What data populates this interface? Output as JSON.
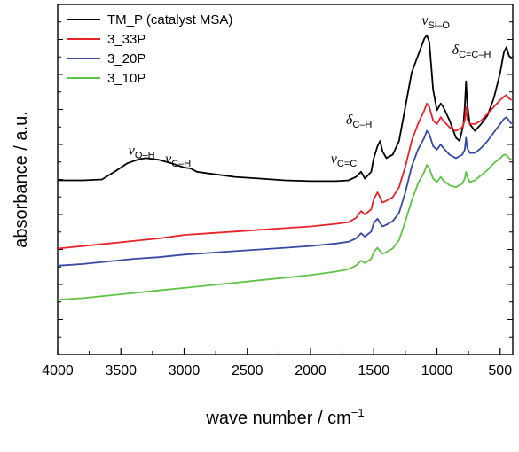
{
  "chart_data": {
    "type": "line",
    "xlabel": "wave number / cm",
    "xlabel_sup": "−1",
    "ylabel": "absorbance / a.u.",
    "xlim": [
      4000,
      400
    ],
    "ylim": [
      -0.05,
      2.0
    ],
    "x_ticks": [
      4000,
      3500,
      3000,
      2500,
      2000,
      1500,
      1000,
      500
    ],
    "y_ticks_labeled": false,
    "legend_position": "top-left",
    "series": [
      {
        "name": "TM_P (catalyst MSA)",
        "color": "#000000",
        "points": [
          [
            4000,
            0.97
          ],
          [
            3800,
            0.97
          ],
          [
            3650,
            0.975
          ],
          [
            3550,
            1.02
          ],
          [
            3450,
            1.07
          ],
          [
            3350,
            1.095
          ],
          [
            3300,
            1.1
          ],
          [
            3200,
            1.09
          ],
          [
            3100,
            1.07
          ],
          [
            3000,
            1.045
          ],
          [
            2950,
            1.04
          ],
          [
            2900,
            1.02
          ],
          [
            2800,
            1.01
          ],
          [
            2600,
            0.99
          ],
          [
            2400,
            0.98
          ],
          [
            2200,
            0.97
          ],
          [
            2000,
            0.965
          ],
          [
            1800,
            0.965
          ],
          [
            1700,
            0.97
          ],
          [
            1640,
            0.99
          ],
          [
            1600,
            1.02
          ],
          [
            1570,
            0.98
          ],
          [
            1520,
            1.02
          ],
          [
            1500,
            1.1
          ],
          [
            1470,
            1.17
          ],
          [
            1450,
            1.2
          ],
          [
            1430,
            1.14
          ],
          [
            1400,
            1.1
          ],
          [
            1350,
            1.12
          ],
          [
            1300,
            1.2
          ],
          [
            1250,
            1.4
          ],
          [
            1200,
            1.6
          ],
          [
            1150,
            1.7
          ],
          [
            1100,
            1.8
          ],
          [
            1080,
            1.82
          ],
          [
            1060,
            1.78
          ],
          [
            1030,
            1.5
          ],
          [
            1000,
            1.38
          ],
          [
            970,
            1.42
          ],
          [
            950,
            1.4
          ],
          [
            900,
            1.32
          ],
          [
            850,
            1.22
          ],
          [
            820,
            1.2
          ],
          [
            790,
            1.3
          ],
          [
            780,
            1.4
          ],
          [
            770,
            1.55
          ],
          [
            760,
            1.42
          ],
          [
            740,
            1.3
          ],
          [
            700,
            1.26
          ],
          [
            650,
            1.3
          ],
          [
            600,
            1.35
          ],
          [
            550,
            1.45
          ],
          [
            500,
            1.6
          ],
          [
            470,
            1.72
          ],
          [
            450,
            1.75
          ],
          [
            430,
            1.7
          ],
          [
            410,
            1.68
          ]
        ]
      },
      {
        "name": "3_33P",
        "color": "#e8232a",
        "points": [
          [
            4000,
            0.57
          ],
          [
            3800,
            0.585
          ],
          [
            3600,
            0.6
          ],
          [
            3400,
            0.615
          ],
          [
            3200,
            0.63
          ],
          [
            3000,
            0.65
          ],
          [
            2800,
            0.66
          ],
          [
            2600,
            0.67
          ],
          [
            2400,
            0.68
          ],
          [
            2200,
            0.69
          ],
          [
            2000,
            0.7
          ],
          [
            1800,
            0.715
          ],
          [
            1700,
            0.725
          ],
          [
            1640,
            0.75
          ],
          [
            1600,
            0.79
          ],
          [
            1570,
            0.77
          ],
          [
            1520,
            0.8
          ],
          [
            1500,
            0.86
          ],
          [
            1470,
            0.9
          ],
          [
            1450,
            0.87
          ],
          [
            1430,
            0.84
          ],
          [
            1400,
            0.85
          ],
          [
            1350,
            0.87
          ],
          [
            1300,
            0.93
          ],
          [
            1250,
            1.05
          ],
          [
            1200,
            1.2
          ],
          [
            1150,
            1.3
          ],
          [
            1100,
            1.38
          ],
          [
            1080,
            1.42
          ],
          [
            1060,
            1.4
          ],
          [
            1030,
            1.32
          ],
          [
            1000,
            1.3
          ],
          [
            970,
            1.34
          ],
          [
            950,
            1.32
          ],
          [
            900,
            1.28
          ],
          [
            850,
            1.26
          ],
          [
            800,
            1.28
          ],
          [
            780,
            1.32
          ],
          [
            770,
            1.4
          ],
          [
            760,
            1.33
          ],
          [
            740,
            1.3
          ],
          [
            700,
            1.3
          ],
          [
            650,
            1.32
          ],
          [
            600,
            1.36
          ],
          [
            550,
            1.4
          ],
          [
            500,
            1.44
          ],
          [
            470,
            1.46
          ],
          [
            450,
            1.47
          ],
          [
            430,
            1.45
          ],
          [
            410,
            1.44
          ]
        ]
      },
      {
        "name": "3_20P",
        "color": "#3749a3",
        "points": [
          [
            4000,
            0.47
          ],
          [
            3800,
            0.48
          ],
          [
            3600,
            0.495
          ],
          [
            3400,
            0.51
          ],
          [
            3200,
            0.52
          ],
          [
            3000,
            0.535
          ],
          [
            2800,
            0.545
          ],
          [
            2600,
            0.555
          ],
          [
            2400,
            0.565
          ],
          [
            2200,
            0.575
          ],
          [
            2000,
            0.585
          ],
          [
            1800,
            0.6
          ],
          [
            1700,
            0.61
          ],
          [
            1640,
            0.63
          ],
          [
            1600,
            0.66
          ],
          [
            1570,
            0.64
          ],
          [
            1520,
            0.67
          ],
          [
            1500,
            0.72
          ],
          [
            1470,
            0.745
          ],
          [
            1450,
            0.72
          ],
          [
            1430,
            0.7
          ],
          [
            1400,
            0.71
          ],
          [
            1350,
            0.73
          ],
          [
            1300,
            0.78
          ],
          [
            1250,
            0.9
          ],
          [
            1200,
            1.05
          ],
          [
            1150,
            1.15
          ],
          [
            1100,
            1.22
          ],
          [
            1080,
            1.26
          ],
          [
            1060,
            1.24
          ],
          [
            1030,
            1.17
          ],
          [
            1000,
            1.15
          ],
          [
            970,
            1.18
          ],
          [
            950,
            1.16
          ],
          [
            900,
            1.12
          ],
          [
            850,
            1.1
          ],
          [
            800,
            1.12
          ],
          [
            780,
            1.15
          ],
          [
            770,
            1.22
          ],
          [
            760,
            1.16
          ],
          [
            740,
            1.13
          ],
          [
            700,
            1.13
          ],
          [
            650,
            1.16
          ],
          [
            600,
            1.2
          ],
          [
            550,
            1.25
          ],
          [
            500,
            1.3
          ],
          [
            470,
            1.33
          ],
          [
            450,
            1.34
          ],
          [
            430,
            1.32
          ],
          [
            410,
            1.3
          ]
        ]
      },
      {
        "name": "3_10P",
        "color": "#5ec447",
        "points": [
          [
            4000,
            0.27
          ],
          [
            3800,
            0.28
          ],
          [
            3600,
            0.295
          ],
          [
            3400,
            0.31
          ],
          [
            3200,
            0.325
          ],
          [
            3000,
            0.34
          ],
          [
            2800,
            0.355
          ],
          [
            2600,
            0.37
          ],
          [
            2400,
            0.385
          ],
          [
            2200,
            0.4
          ],
          [
            2000,
            0.415
          ],
          [
            1800,
            0.435
          ],
          [
            1700,
            0.45
          ],
          [
            1640,
            0.47
          ],
          [
            1600,
            0.5
          ],
          [
            1570,
            0.485
          ],
          [
            1520,
            0.51
          ],
          [
            1500,
            0.55
          ],
          [
            1470,
            0.575
          ],
          [
            1450,
            0.555
          ],
          [
            1430,
            0.54
          ],
          [
            1400,
            0.55
          ],
          [
            1350,
            0.57
          ],
          [
            1300,
            0.62
          ],
          [
            1250,
            0.73
          ],
          [
            1200,
            0.85
          ],
          [
            1150,
            0.95
          ],
          [
            1100,
            1.02
          ],
          [
            1080,
            1.06
          ],
          [
            1060,
            1.04
          ],
          [
            1030,
            0.98
          ],
          [
            1000,
            0.96
          ],
          [
            970,
            0.99
          ],
          [
            950,
            0.97
          ],
          [
            900,
            0.94
          ],
          [
            850,
            0.93
          ],
          [
            800,
            0.95
          ],
          [
            780,
            0.98
          ],
          [
            770,
            1.02
          ],
          [
            760,
            0.99
          ],
          [
            740,
            0.96
          ],
          [
            700,
            0.97
          ],
          [
            650,
            1.0
          ],
          [
            600,
            1.03
          ],
          [
            550,
            1.07
          ],
          [
            500,
            1.1
          ],
          [
            470,
            1.12
          ],
          [
            450,
            1.12
          ],
          [
            430,
            1.1
          ],
          [
            410,
            1.09
          ]
        ]
      }
    ],
    "annotations": [
      {
        "symbol": "ν",
        "sub": "O–H",
        "x": 3440,
        "y": 1.12
      },
      {
        "symbol": "ν",
        "sub": "C–H",
        "x": 3150,
        "y": 1.07
      },
      {
        "symbol": "ν",
        "sub": "C=C",
        "x": 1840,
        "y": 1.07
      },
      {
        "symbol": "δ",
        "sub": "C–H",
        "x": 1720,
        "y": 1.3
      },
      {
        "symbol": "ν",
        "sub": "Si–O",
        "x": 1120,
        "y": 1.88
      },
      {
        "symbol": "δ",
        "sub": "C=C–H",
        "x": 880,
        "y": 1.71
      }
    ]
  }
}
